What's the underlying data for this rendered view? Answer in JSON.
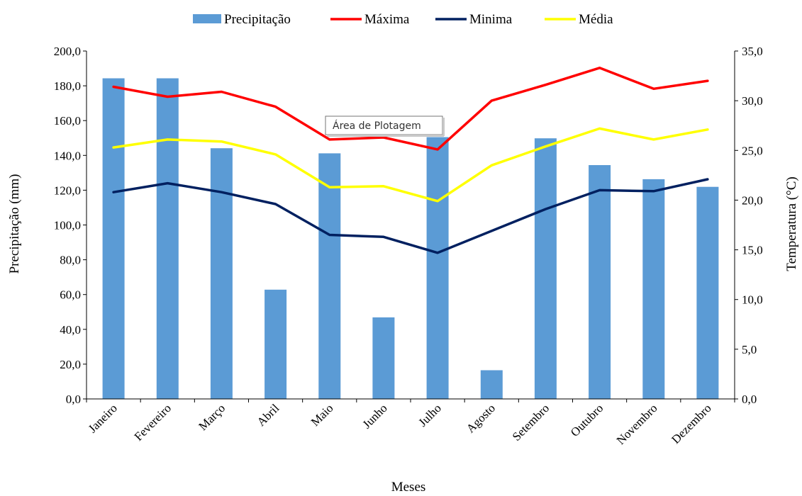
{
  "chart_data": {
    "type": "bar",
    "categories": [
      "Janeiro",
      "Fevereiro",
      "Março",
      "Abril",
      "Maio",
      "Junho",
      "Julho",
      "Agosto",
      "Setembro",
      "Outubro",
      "Novembro",
      "Dezembro"
    ],
    "xlabel": "Meses",
    "ylabel": "Precipitação (mm)",
    "y2label": "Temperatura (°C)",
    "ylim": [
      0,
      200
    ],
    "y2lim": [
      0,
      35
    ],
    "yticks": [
      "0,0",
      "20,0",
      "40,0",
      "60,0",
      "80,0",
      "100,0",
      "120,0",
      "140,0",
      "160,0",
      "180,0",
      "200,0"
    ],
    "y2ticks": [
      "0,0",
      "5,0",
      "10,0",
      "15,0",
      "20,0",
      "25,0",
      "30,0",
      "35,0"
    ],
    "grid": false,
    "legend_position": "top",
    "series": [
      {
        "name": "Precipitação",
        "type": "bar",
        "axis": "left",
        "color": "#5b9bd5",
        "values": [
          184.3,
          184.3,
          144.1,
          62.8,
          141.2,
          46.9,
          150.5,
          16.5,
          149.8,
          134.4,
          126.3,
          121.9
        ]
      },
      {
        "name": "Máxima",
        "type": "line",
        "axis": "right",
        "color": "#ff0000",
        "values": [
          31.4,
          30.4,
          30.9,
          29.4,
          26.1,
          26.3,
          25.1,
          30.0,
          31.6,
          33.3,
          31.2,
          32.0
        ]
      },
      {
        "name": "Minima",
        "type": "line",
        "axis": "right",
        "color": "#002060",
        "values": [
          20.8,
          21.7,
          20.8,
          19.6,
          16.5,
          16.3,
          14.7,
          16.9,
          19.1,
          21.0,
          20.9,
          22.1
        ]
      },
      {
        "name": "Média",
        "type": "line",
        "axis": "right",
        "color": "#ffff00",
        "values": [
          25.3,
          26.1,
          25.9,
          24.6,
          21.3,
          21.4,
          19.9,
          23.5,
          25.4,
          27.2,
          26.1,
          27.1
        ]
      }
    ],
    "tooltip": "Área de Plotagem"
  }
}
